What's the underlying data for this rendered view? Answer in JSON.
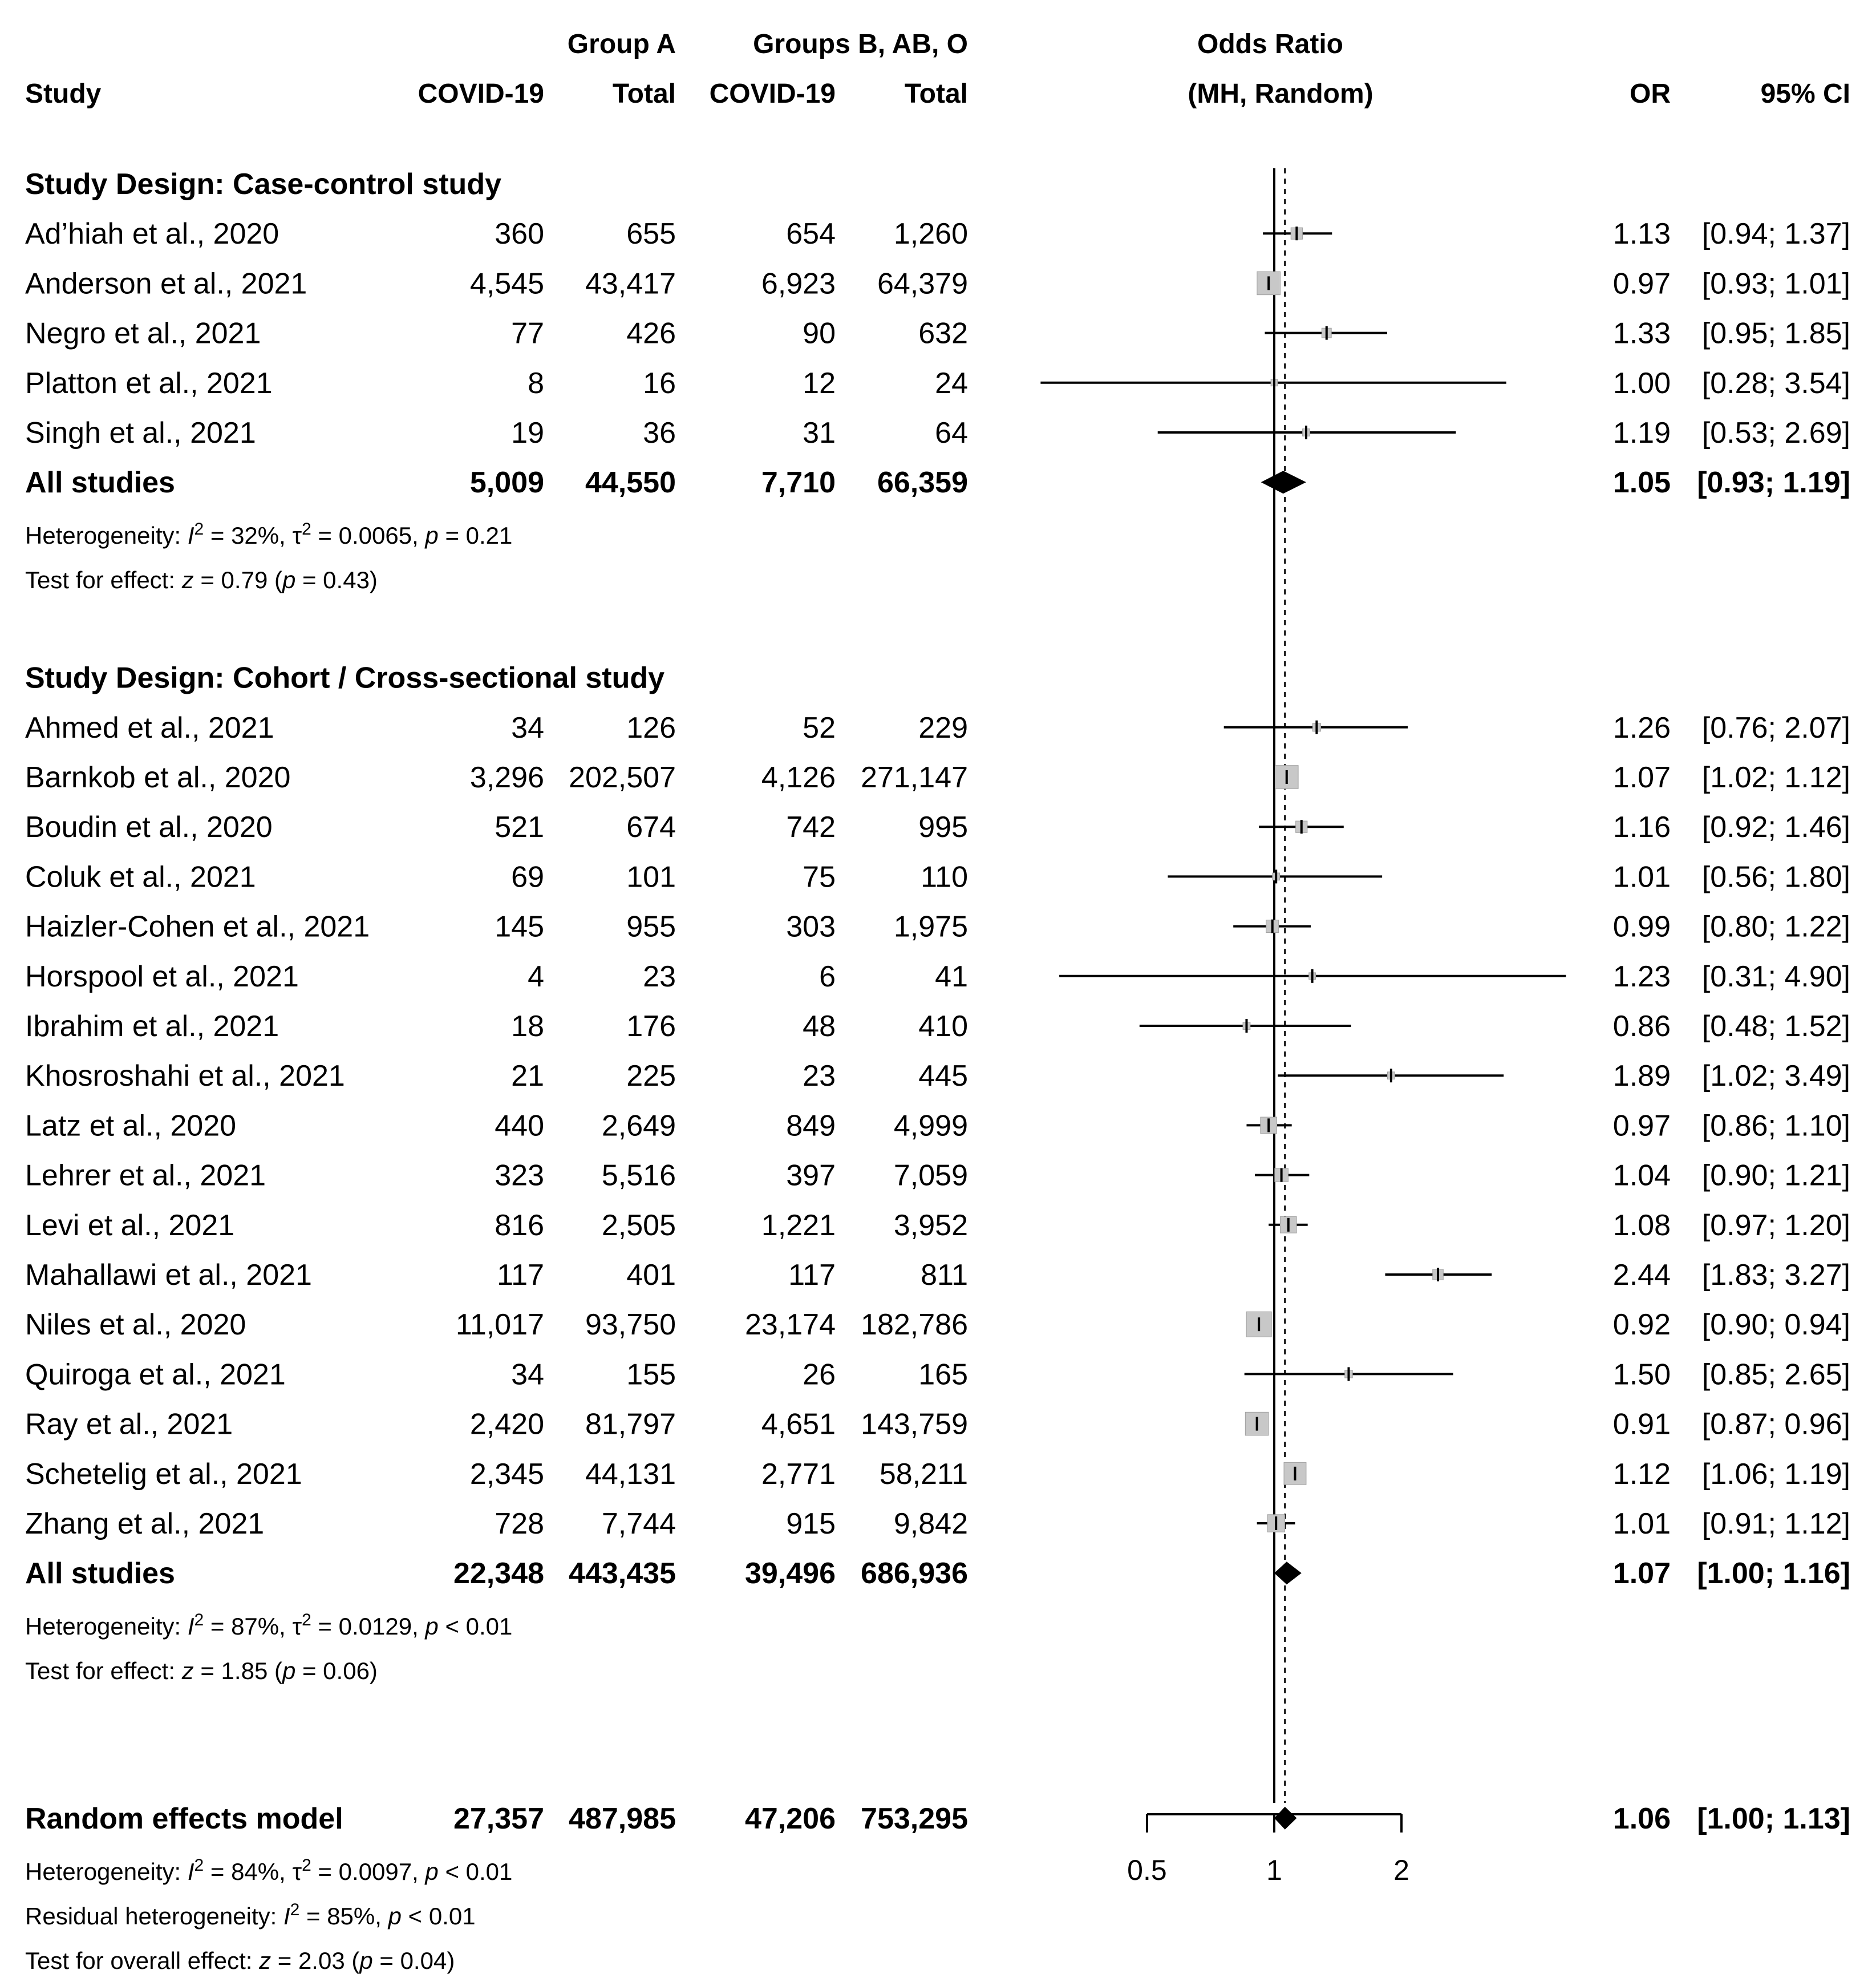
{
  "chart_data": {
    "type": "forest",
    "scale": "log",
    "reference_line": 1,
    "pooled_line": 1.06,
    "axis_ticks": [
      0.5,
      1,
      2
    ],
    "axis_tick_labels": [
      "0.5",
      "1",
      "2"
    ],
    "headers": {
      "group_a": "Group A",
      "group_b": "Groups B, AB, O",
      "study": "Study",
      "covid_a": "COVID-19",
      "total_a": "Total",
      "covid_b": "COVID-19",
      "total_b": "Total",
      "odds_ratio": "Odds Ratio",
      "method": "(MH, Random)",
      "or": "OR",
      "ci": "95% CI"
    },
    "rows": [
      {
        "kind": "subgroup",
        "label": "Study Design: Case-control study"
      },
      {
        "kind": "study",
        "label": "Ad’hiah et al., 2020",
        "e1": "360",
        "n1": "655",
        "e2": "654",
        "n2": "1,260",
        "or": 1.13,
        "lo": 0.94,
        "hi": 1.37,
        "or_text": "1.13",
        "ci_text": "[0.94; 1.37]",
        "w": 0.3
      },
      {
        "kind": "study",
        "label": "Anderson et al., 2021",
        "e1": "4,545",
        "n1": "43,417",
        "e2": "6,923",
        "n2": "64,379",
        "or": 0.97,
        "lo": 0.93,
        "hi": 1.01,
        "or_text": "0.97",
        "ci_text": "[0.93; 1.01]",
        "w": 0.9
      },
      {
        "kind": "study",
        "label": "Negro et al., 2021",
        "e1": "77",
        "n1": "426",
        "e2": "90",
        "n2": "632",
        "or": 1.33,
        "lo": 0.95,
        "hi": 1.85,
        "or_text": "1.33",
        "ci_text": "[0.95; 1.85]",
        "w": 0.2
      },
      {
        "kind": "study",
        "label": "Platton et al., 2021",
        "e1": "8",
        "n1": "16",
        "e2": "12",
        "n2": "24",
        "or": 1.0,
        "lo": 0.28,
        "hi": 3.54,
        "or_text": "1.00",
        "ci_text": "[0.28; 3.54]",
        "w": 0.05
      },
      {
        "kind": "study",
        "label": "Singh et al., 2021",
        "e1": "19",
        "n1": "36",
        "e2": "31",
        "n2": "64",
        "or": 1.19,
        "lo": 0.53,
        "hi": 2.69,
        "or_text": "1.19",
        "ci_text": "[0.53; 2.69]",
        "w": 0.08
      },
      {
        "kind": "summary",
        "label": "All studies",
        "e1": "5,009",
        "n1": "44,550",
        "e2": "7,710",
        "n2": "66,359",
        "or": 1.05,
        "lo": 0.93,
        "hi": 1.19,
        "or_text": "1.05",
        "ci_text": "[0.93; 1.19]"
      },
      {
        "kind": "het",
        "parts": [
          [
            "Heterogeneity: ",
            "n"
          ],
          [
            "I",
            "i"
          ],
          [
            "2",
            "s"
          ],
          [
            " = 32%, τ",
            "n"
          ],
          [
            "2",
            "s"
          ],
          [
            " = 0.0065, ",
            "n"
          ],
          [
            "p",
            "i"
          ],
          [
            " = 0.21",
            "n"
          ]
        ]
      },
      {
        "kind": "het",
        "parts": [
          [
            "Test for effect: ",
            "n"
          ],
          [
            "z",
            "i"
          ],
          [
            " = 0.79 (",
            "n"
          ],
          [
            "p",
            "i"
          ],
          [
            " = 0.43)",
            "n"
          ]
        ]
      },
      {
        "kind": "blank"
      },
      {
        "kind": "subgroup",
        "label": "Study Design: Cohort / Cross-sectional study"
      },
      {
        "kind": "study",
        "label": "Ahmed et al., 2021",
        "e1": "34",
        "n1": "126",
        "e2": "52",
        "n2": "229",
        "or": 1.26,
        "lo": 0.76,
        "hi": 2.07,
        "or_text": "1.26",
        "ci_text": "[0.76; 2.07]",
        "w": 0.12
      },
      {
        "kind": "study",
        "label": "Barnkob et al., 2020",
        "e1": "3,296",
        "n1": "202,507",
        "e2": "4,126",
        "n2": "271,147",
        "or": 1.07,
        "lo": 1.02,
        "hi": 1.12,
        "or_text": "1.07",
        "ci_text": "[1.02; 1.12]",
        "w": 0.9
      },
      {
        "kind": "study",
        "label": "Boudin et al., 2020",
        "e1": "521",
        "n1": "674",
        "e2": "742",
        "n2": "995",
        "or": 1.16,
        "lo": 0.92,
        "hi": 1.46,
        "or_text": "1.16",
        "ci_text": "[0.92; 1.46]",
        "w": 0.3
      },
      {
        "kind": "study",
        "label": "Coluk et al., 2021",
        "e1": "69",
        "n1": "101",
        "e2": "75",
        "n2": "110",
        "or": 1.01,
        "lo": 0.56,
        "hi": 1.8,
        "or_text": "1.01",
        "ci_text": "[0.56; 1.80]",
        "w": 0.08
      },
      {
        "kind": "study",
        "label": "Haizler-Cohen et al., 2021",
        "e1": "145",
        "n1": "955",
        "e2": "303",
        "n2": "1,975",
        "or": 0.99,
        "lo": 0.8,
        "hi": 1.22,
        "or_text": "0.99",
        "ci_text": "[0.80; 1.22]",
        "w": 0.35
      },
      {
        "kind": "study",
        "label": "Horspool et al., 2021",
        "e1": "4",
        "n1": "23",
        "e2": "6",
        "n2": "41",
        "or": 1.23,
        "lo": 0.31,
        "hi": 4.9,
        "or_text": "1.23",
        "ci_text": "[0.31; 4.90]",
        "w": 0.05
      },
      {
        "kind": "study",
        "label": "Ibrahim et al., 2021",
        "e1": "18",
        "n1": "176",
        "e2": "48",
        "n2": "410",
        "or": 0.86,
        "lo": 0.48,
        "hi": 1.52,
        "or_text": "0.86",
        "ci_text": "[0.48; 1.52]",
        "w": 0.08
      },
      {
        "kind": "study",
        "label": "Khosroshahi et al., 2021",
        "e1": "21",
        "n1": "225",
        "e2": "23",
        "n2": "445",
        "or": 1.89,
        "lo": 1.02,
        "hi": 3.49,
        "or_text": "1.89",
        "ci_text": "[1.02; 3.49]",
        "w": 0.08
      },
      {
        "kind": "study",
        "label": "Latz et al., 2020",
        "e1": "440",
        "n1": "2,649",
        "e2": "849",
        "n2": "4,999",
        "or": 0.97,
        "lo": 0.86,
        "hi": 1.1,
        "or_text": "0.97",
        "ci_text": "[0.86; 1.10]",
        "w": 0.55
      },
      {
        "kind": "study",
        "label": "Lehrer et al., 2021",
        "e1": "323",
        "n1": "5,516",
        "e2": "397",
        "n2": "7,059",
        "or": 1.04,
        "lo": 0.9,
        "hi": 1.21,
        "or_text": "1.04",
        "ci_text": "[0.90; 1.21]",
        "w": 0.4
      },
      {
        "kind": "study",
        "label": "Levi et al., 2021",
        "e1": "816",
        "n1": "2,505",
        "e2": "1,221",
        "n2": "3,952",
        "or": 1.08,
        "lo": 0.97,
        "hi": 1.2,
        "or_text": "1.08",
        "ci_text": "[0.97; 1.20]",
        "w": 0.55
      },
      {
        "kind": "study",
        "label": "Mahallawi et al., 2021",
        "e1": "117",
        "n1": "401",
        "e2": "117",
        "n2": "811",
        "or": 2.44,
        "lo": 1.83,
        "hi": 3.27,
        "or_text": "2.44",
        "ci_text": "[1.83; 3.27]",
        "w": 0.25
      },
      {
        "kind": "study",
        "label": "Niles et al., 2020",
        "e1": "11,017",
        "n1": "93,750",
        "e2": "23,174",
        "n2": "182,786",
        "or": 0.92,
        "lo": 0.9,
        "hi": 0.94,
        "or_text": "0.92",
        "ci_text": "[0.90; 0.94]",
        "w": 1.0
      },
      {
        "kind": "study",
        "label": "Quiroga et al., 2021",
        "e1": "34",
        "n1": "155",
        "e2": "26",
        "n2": "165",
        "or": 1.5,
        "lo": 0.85,
        "hi": 2.65,
        "or_text": "1.50",
        "ci_text": "[0.85; 2.65]",
        "w": 0.1
      },
      {
        "kind": "study",
        "label": "Ray et al., 2021",
        "e1": "2,420",
        "n1": "81,797",
        "e2": "4,651",
        "n2": "143,759",
        "or": 0.91,
        "lo": 0.87,
        "hi": 0.96,
        "or_text": "0.91",
        "ci_text": "[0.87; 0.96]",
        "w": 0.9
      },
      {
        "kind": "study",
        "label": "Schetelig et al., 2021",
        "e1": "2,345",
        "n1": "44,131",
        "e2": "2,771",
        "n2": "58,211",
        "or": 1.12,
        "lo": 1.06,
        "hi": 1.19,
        "or_text": "1.12",
        "ci_text": "[1.06; 1.19]",
        "w": 0.85
      },
      {
        "kind": "study",
        "label": "Zhang et al., 2021",
        "e1": "728",
        "n1": "7,744",
        "e2": "915",
        "n2": "9,842",
        "or": 1.01,
        "lo": 0.91,
        "hi": 1.12,
        "or_text": "1.01",
        "ci_text": "[0.91; 1.12]",
        "w": 0.6
      },
      {
        "kind": "summary",
        "label": "All studies",
        "e1": "22,348",
        "n1": "443,435",
        "e2": "39,496",
        "n2": "686,936",
        "or": 1.07,
        "lo": 1.0,
        "hi": 1.16,
        "or_text": "1.07",
        "ci_text": "[1.00; 1.16]"
      },
      {
        "kind": "het",
        "parts": [
          [
            "Heterogeneity: ",
            "n"
          ],
          [
            "I",
            "i"
          ],
          [
            "2",
            "s"
          ],
          [
            " = 87%, τ",
            "n"
          ],
          [
            "2",
            "s"
          ],
          [
            " = 0.0129, ",
            "n"
          ],
          [
            "p",
            "i"
          ],
          [
            " < 0.01",
            "n"
          ]
        ]
      },
      {
        "kind": "het",
        "parts": [
          [
            "Test for effect: ",
            "n"
          ],
          [
            "z",
            "i"
          ],
          [
            " = 1.85 (",
            "n"
          ],
          [
            "p",
            "i"
          ],
          [
            " = 0.06)",
            "n"
          ]
        ]
      },
      {
        "kind": "blank"
      },
      {
        "kind": "blank"
      },
      {
        "kind": "summary",
        "label": "Random effects model",
        "e1": "27,357",
        "n1": "487,985",
        "e2": "47,206",
        "n2": "753,295",
        "or": 1.06,
        "lo": 1.0,
        "hi": 1.13,
        "or_text": "1.06",
        "ci_text": "[1.00; 1.13]"
      },
      {
        "kind": "het",
        "parts": [
          [
            "Heterogeneity: ",
            "n"
          ],
          [
            "I",
            "i"
          ],
          [
            "2",
            "s"
          ],
          [
            " = 84%, τ",
            "n"
          ],
          [
            "2",
            "s"
          ],
          [
            " = 0.0097, ",
            "n"
          ],
          [
            "p",
            "i"
          ],
          [
            " < 0.01",
            "n"
          ]
        ]
      },
      {
        "kind": "het",
        "parts": [
          [
            "Residual heterogeneity: ",
            "n"
          ],
          [
            "I",
            "i"
          ],
          [
            "2",
            "s"
          ],
          [
            " = 85%, ",
            "n"
          ],
          [
            "p",
            "i"
          ],
          [
            " < 0.01",
            "n"
          ]
        ]
      },
      {
        "kind": "het",
        "parts": [
          [
            "Test for overall effect: ",
            "n"
          ],
          [
            "z",
            "i"
          ],
          [
            " = 2.03 (",
            "n"
          ],
          [
            "p",
            "i"
          ],
          [
            " = 0.04)",
            "n"
          ]
        ]
      }
    ]
  }
}
